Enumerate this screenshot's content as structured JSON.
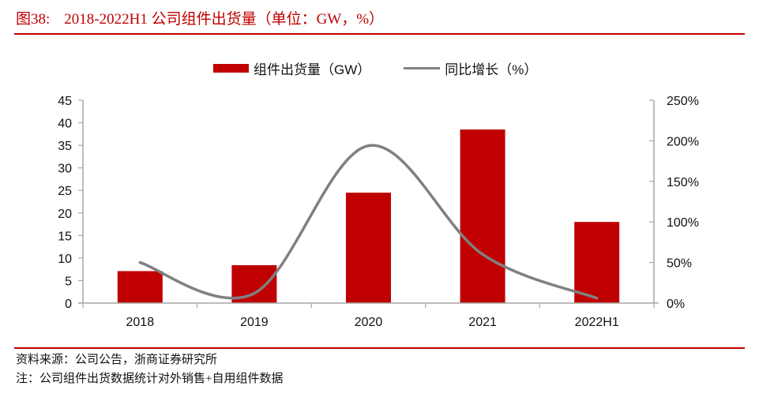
{
  "header": {
    "figure_label": "图38:",
    "title": "2018-2022H1 公司组件出货量（单位：GW，%）"
  },
  "footer": {
    "source": "资料来源：公司公告，浙商证券研究所",
    "note": "注：公司组件出货数据统计对外销售+自用组件数据"
  },
  "colors": {
    "accent": "#c00000",
    "bar": "#c00000",
    "line": "#808080",
    "axis": "#a6a6a6"
  },
  "chart_data": {
    "type": "bar",
    "title": "2018-2022H1 公司组件出货量（单位：GW，%）",
    "categories": [
      "2018",
      "2019",
      "2020",
      "2021",
      "2022H1"
    ],
    "series": [
      {
        "name": "组件出货量（GW）",
        "type": "bar",
        "axis": "left",
        "values": [
          7.1,
          8.4,
          24.5,
          38.5,
          18.0
        ]
      },
      {
        "name": "同比增长（%）",
        "type": "line",
        "axis": "right",
        "smooth": true,
        "values": [
          50,
          12,
          194,
          60,
          6
        ]
      }
    ],
    "y_left": {
      "min": 0,
      "max": 45,
      "step": 5,
      "ticks": [
        "0",
        "5",
        "10",
        "15",
        "20",
        "25",
        "30",
        "35",
        "40",
        "45"
      ]
    },
    "y_right": {
      "min": 0,
      "max": 250,
      "step": 50,
      "ticks": [
        "0%",
        "50%",
        "100%",
        "150%",
        "200%",
        "250%"
      ]
    },
    "legend": {
      "position": "top",
      "entries": [
        "组件出货量（GW）",
        "同比增长（%）"
      ]
    },
    "grid": false,
    "xlabel": "",
    "ylabel": ""
  }
}
